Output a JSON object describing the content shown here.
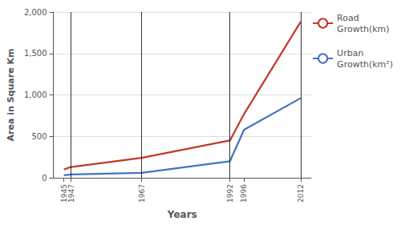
{
  "chart_data": {
    "type": "line",
    "xlabel": "Years",
    "ylabel": "Area in Square Km",
    "x": [
      1945,
      1947,
      1967,
      1992,
      1996,
      2012
    ],
    "series": [
      {
        "name": "Road\nGrowth(km)",
        "color": "#C0392B",
        "values": [
          100,
          130,
          240,
          450,
          770,
          1880
        ]
      },
      {
        "name": "Urban\nGrowth(km²)",
        "color": "#4472C4",
        "values": [
          30,
          40,
          60,
          200,
          580,
          960
        ]
      }
    ],
    "vlines": [
      1947,
      1967,
      1992,
      2012
    ],
    "xlim": [
      1942,
      2015
    ],
    "xticks": [
      1945,
      1947,
      1967,
      1992,
      1996,
      2012
    ],
    "ylim": [
      0,
      2000
    ],
    "yticks": [
      0,
      500,
      1000,
      1500,
      2000
    ],
    "grid": "y",
    "legend": "right"
  }
}
